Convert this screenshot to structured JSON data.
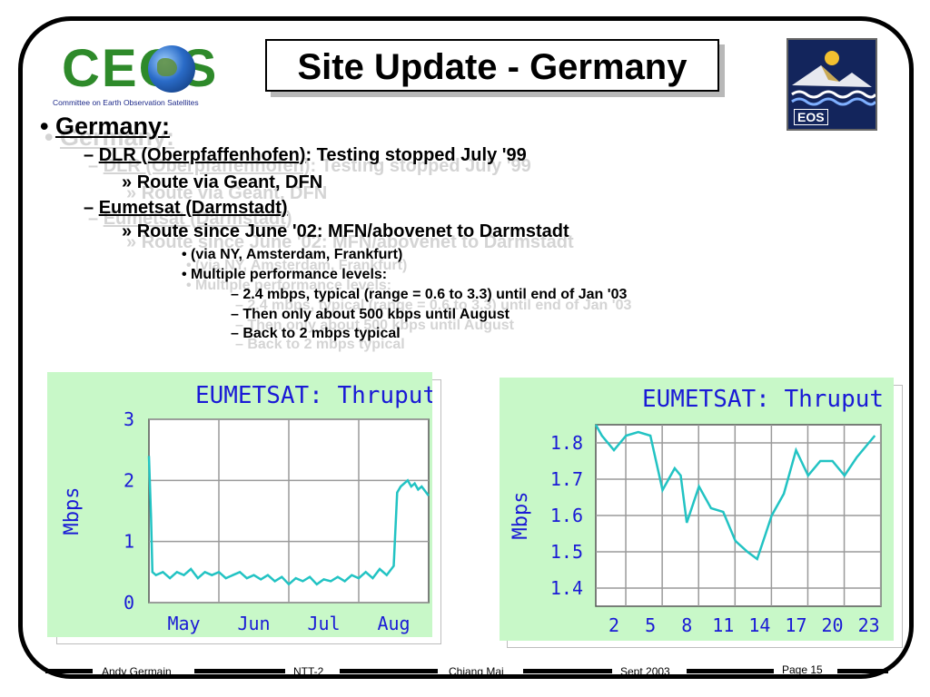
{
  "logos": {
    "ceos": {
      "text": "CEOS",
      "subtitle": "Committee on Earth Observation Satellites"
    },
    "eos": {
      "text": "EOS"
    }
  },
  "title": "Site Update - Germany",
  "bullets": {
    "country": "Germany:",
    "dlr": {
      "name": "DLR (Oberpfaffenhofen)",
      "rest": ": Testing stopped July '99"
    },
    "dlr_route": "Route via Geant, DFN",
    "eumetsat": "Eumetsat (Darmstadt)",
    "eumetsat_route": "Route since June '02: MFN/abovenet to Darmstadt",
    "via": "(via NY, Amsterdam, Frankfurt)",
    "perf": "Multiple performance levels:",
    "perf_items": [
      "2.4 mbps, typical (range = 0.6 to 3.3) until end of Jan '03",
      "Then only about 500 kbps until August",
      "Back to 2 mbps typical"
    ]
  },
  "chart_data": [
    {
      "type": "line",
      "title": "EUMETSAT: Thruput",
      "ylabel": "Mbps",
      "xlabel": "",
      "x_ticks": [
        "May",
        "Jun",
        "Jul",
        "Aug"
      ],
      "y_ticks": [
        0,
        1,
        2,
        3
      ],
      "ylim": [
        0,
        3
      ],
      "xlim": [
        0,
        4
      ],
      "grid": true,
      "colors": {
        "background": "#c8f8c8",
        "line": "#22c3c3",
        "text": "#1a1ad6",
        "grid": "#9a9a9a"
      },
      "series": [
        {
          "x": [
            0.0,
            0.03,
            0.05,
            0.1,
            0.2,
            0.3,
            0.4,
            0.5,
            0.6,
            0.7,
            0.8,
            0.9,
            1.0,
            1.1,
            1.2,
            1.3,
            1.4,
            1.5,
            1.6,
            1.7,
            1.8,
            1.9,
            2.0,
            2.1,
            2.2,
            2.3,
            2.4,
            2.5,
            2.6,
            2.7,
            2.8,
            2.9,
            3.0,
            3.1,
            3.2,
            3.3,
            3.4,
            3.5,
            3.55,
            3.6,
            3.7,
            3.75,
            3.8,
            3.85,
            3.9,
            4.0
          ],
          "y": [
            2.4,
            1.4,
            0.5,
            0.45,
            0.5,
            0.4,
            0.5,
            0.45,
            0.55,
            0.4,
            0.5,
            0.45,
            0.5,
            0.4,
            0.45,
            0.5,
            0.4,
            0.45,
            0.38,
            0.45,
            0.35,
            0.42,
            0.3,
            0.4,
            0.35,
            0.42,
            0.3,
            0.38,
            0.35,
            0.42,
            0.35,
            0.45,
            0.4,
            0.5,
            0.4,
            0.55,
            0.45,
            0.6,
            1.8,
            1.9,
            2.0,
            1.9,
            1.95,
            1.85,
            1.9,
            1.75
          ]
        }
      ]
    },
    {
      "type": "line",
      "title": "EUMETSAT: Thruput",
      "ylabel": "Mbps",
      "xlabel": "",
      "x_ticks": [
        2,
        5,
        8,
        11,
        14,
        17,
        20,
        23
      ],
      "y_ticks": [
        1.4,
        1.5,
        1.6,
        1.7,
        1.8
      ],
      "ylim": [
        1.35,
        1.85
      ],
      "xlim": [
        0.5,
        24
      ],
      "grid": true,
      "colors": {
        "background": "#c8f8c8",
        "line": "#22c3c3",
        "text": "#1a1ad6",
        "grid": "#9a9a9a"
      },
      "series": [
        {
          "x": [
            0.5,
            1.0,
            2.0,
            3.0,
            4.0,
            5.0,
            6.0,
            7.0,
            7.5,
            8.0,
            8.5,
            9.0,
            10.0,
            11.0,
            12.0,
            13.0,
            13.8,
            14.5,
            15.0,
            16.0,
            17.0,
            18.0,
            19.0,
            20.0,
            21.0,
            22.0,
            23.0,
            23.5
          ],
          "y": [
            1.89,
            1.82,
            1.78,
            1.82,
            1.83,
            1.82,
            1.67,
            1.73,
            1.71,
            1.58,
            1.63,
            1.68,
            1.62,
            1.61,
            1.53,
            1.5,
            1.48,
            1.55,
            1.6,
            1.66,
            1.78,
            1.71,
            1.75,
            1.75,
            1.71,
            1.76,
            1.8,
            1.82
          ]
        }
      ]
    }
  ],
  "footer": {
    "author": "Andy Germain",
    "event": "NTT-2",
    "presenter": "Chiang Mai",
    "date": "Sept 2003",
    "page": "Page 15"
  }
}
